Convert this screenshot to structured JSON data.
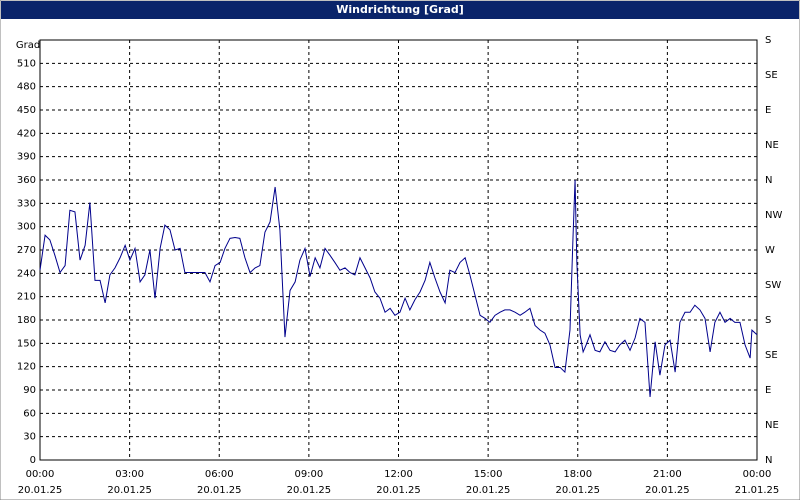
{
  "chart_data": {
    "type": "line",
    "title": "Windrichtung [Grad]",
    "y_label": "Grad",
    "xlim": [
      0,
      24
    ],
    "ylim": [
      0,
      540
    ],
    "y2lim": [
      0,
      540
    ],
    "grid": true,
    "xticks": [
      {
        "value": 0,
        "label": "00:00"
      },
      {
        "value": 3,
        "label": "03:00"
      },
      {
        "value": 6,
        "label": "06:00"
      },
      {
        "value": 9,
        "label": "09:00"
      },
      {
        "value": 12,
        "label": "12:00"
      },
      {
        "value": 15,
        "label": "15:00"
      },
      {
        "value": 18,
        "label": "18:00"
      },
      {
        "value": 21,
        "label": "21:00"
      },
      {
        "value": 24,
        "label": "00:00"
      }
    ],
    "xtick_dates": [
      "20.01.25",
      "20.01.25",
      "20.01.25",
      "20.01.25",
      "20.01.25",
      "20.01.25",
      "20.01.25",
      "20.01.25",
      "21.01.25"
    ],
    "yticks": [
      0,
      30,
      60,
      90,
      120,
      150,
      180,
      210,
      240,
      270,
      300,
      330,
      360,
      390,
      420,
      450,
      480,
      510
    ],
    "y2ticks": [
      {
        "value": 0,
        "label": "N"
      },
      {
        "value": 45,
        "label": "NE"
      },
      {
        "value": 90,
        "label": "E"
      },
      {
        "value": 135,
        "label": "SE"
      },
      {
        "value": 180,
        "label": "S"
      },
      {
        "value": 225,
        "label": "SW"
      },
      {
        "value": 270,
        "label": "W"
      },
      {
        "value": 315,
        "label": "NW"
      },
      {
        "value": 360,
        "label": "N"
      },
      {
        "value": 405,
        "label": "NE"
      },
      {
        "value": 450,
        "label": "E"
      },
      {
        "value": 495,
        "label": "SE"
      },
      {
        "value": 540,
        "label": "S"
      }
    ],
    "x": [
      0,
      0.17,
      0.33,
      0.5,
      0.67,
      0.84,
      1.0,
      1.17,
      1.34,
      1.51,
      1.67,
      1.84,
      2.01,
      2.18,
      2.34,
      2.51,
      2.68,
      2.85,
      3.01,
      3.18,
      3.35,
      3.51,
      3.68,
      3.85,
      4.02,
      4.18,
      4.35,
      4.52,
      4.69,
      4.85,
      5.02,
      5.36,
      5.52,
      5.69,
      5.86,
      6.03,
      6.19,
      6.36,
      6.53,
      6.69,
      6.86,
      7.03,
      7.2,
      7.36,
      7.53,
      7.7,
      7.87,
      8.03,
      8.2,
      8.37,
      8.54,
      8.7,
      8.87,
      9.04,
      9.21,
      9.37,
      9.54,
      9.71,
      9.87,
      10.04,
      10.21,
      10.38,
      10.54,
      10.71,
      10.88,
      11.05,
      11.21,
      11.38,
      11.55,
      11.72,
      11.88,
      12.05,
      12.22,
      12.38,
      12.55,
      12.72,
      12.89,
      13.05,
      13.22,
      13.39,
      13.56,
      13.72,
      13.89,
      14.06,
      14.23,
      14.39,
      14.56,
      14.73,
      14.9,
      15.06,
      15.23,
      15.4,
      15.56,
      15.73,
      15.9,
      16.07,
      16.23,
      16.4,
      16.57,
      16.74,
      16.9,
      17.07,
      17.24,
      17.41,
      17.57,
      17.74,
      17.84,
      17.91,
      17.97,
      18.08,
      18.18,
      18.28,
      18.41,
      18.58,
      18.74,
      18.91,
      19.08,
      19.25,
      19.41,
      19.58,
      19.75,
      19.92,
      20.08,
      20.25,
      20.42,
      20.59,
      20.75,
      20.92,
      21.09,
      21.26,
      21.42,
      21.59,
      21.76,
      21.92,
      22.09,
      22.26,
      22.43,
      22.59,
      22.76,
      22.93,
      23.1,
      23.26,
      23.43,
      23.6,
      23.77,
      23.83,
      24.0
    ],
    "series": [
      {
        "color": "#00008c",
        "values": [
          244,
          289,
          283,
          263,
          241,
          250,
          321,
          319,
          257,
          276,
          331,
          231,
          231,
          202,
          238,
          247,
          260,
          276,
          257,
          272,
          229,
          238,
          270,
          208,
          272,
          302,
          296,
          270,
          272,
          241,
          241,
          241,
          241,
          229,
          250,
          254,
          272,
          285,
          286,
          285,
          260,
          241,
          247,
          250,
          293,
          306,
          351,
          296,
          158,
          218,
          229,
          257,
          272,
          236,
          260,
          247,
          272,
          263,
          254,
          244,
          247,
          241,
          238,
          260,
          247,
          234,
          216,
          208,
          190,
          195,
          186,
          190,
          208,
          193,
          206,
          216,
          231,
          254,
          234,
          216,
          202,
          244,
          241,
          254,
          260,
          238,
          212,
          186,
          182,
          177,
          186,
          190,
          193,
          193,
          190,
          186,
          190,
          195,
          173,
          167,
          163,
          148,
          119,
          119,
          113,
          167,
          285,
          360,
          254,
          161,
          139,
          148,
          161,
          141,
          139,
          152,
          141,
          139,
          148,
          154,
          141,
          157,
          182,
          177,
          81,
          152,
          109,
          148,
          154,
          113,
          177,
          190,
          190,
          199,
          193,
          182,
          139,
          177,
          190,
          177,
          182,
          177,
          177,
          148,
          131,
          167,
          161
        ]
      }
    ]
  }
}
